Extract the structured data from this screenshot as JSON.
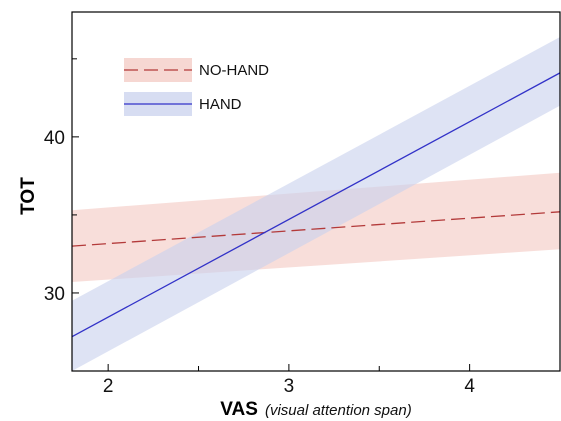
{
  "chart_data": {
    "type": "line",
    "xlabel": "VAS",
    "xlabel_detail": "(visual attention span)",
    "ylabel": "TOT",
    "xlim": [
      1.8,
      4.5
    ],
    "ylim": [
      25,
      48
    ],
    "x_ticks": [
      2,
      3,
      4
    ],
    "x_minor_ticks": [
      2.5,
      3.5
    ],
    "y_ticks": [
      30,
      40
    ],
    "y_minor_ticks": [
      35,
      45
    ],
    "grid": false,
    "legend": "top-left",
    "series": [
      {
        "name": "NO-HAND",
        "style": "dashed",
        "color": "#b33a3a",
        "band_color": "#f3c9c3",
        "x": [
          1.8,
          4.5
        ],
        "y": [
          33.0,
          35.2
        ],
        "band_lower": [
          30.7,
          32.8
        ],
        "band_upper": [
          35.3,
          37.7
        ]
      },
      {
        "name": "HAND",
        "style": "solid",
        "color": "#3232c8",
        "band_color": "#c9d2ee",
        "x": [
          1.8,
          4.5
        ],
        "y": [
          27.2,
          44.1
        ],
        "band_lower": [
          25.0,
          42.0
        ],
        "band_upper": [
          29.5,
          46.4
        ]
      }
    ]
  }
}
